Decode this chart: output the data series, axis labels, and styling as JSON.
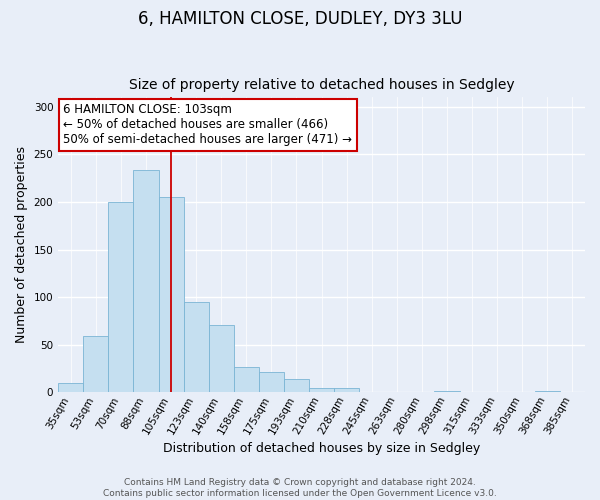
{
  "title": "6, HAMILTON CLOSE, DUDLEY, DY3 3LU",
  "subtitle": "Size of property relative to detached houses in Sedgley",
  "xlabel": "Distribution of detached houses by size in Sedgley",
  "ylabel": "Number of detached properties",
  "categories": [
    "35sqm",
    "53sqm",
    "70sqm",
    "88sqm",
    "105sqm",
    "123sqm",
    "140sqm",
    "158sqm",
    "175sqm",
    "193sqm",
    "210sqm",
    "228sqm",
    "245sqm",
    "263sqm",
    "280sqm",
    "298sqm",
    "315sqm",
    "333sqm",
    "350sqm",
    "368sqm",
    "385sqm"
  ],
  "values": [
    10,
    59,
    200,
    234,
    205,
    95,
    71,
    27,
    21,
    14,
    4,
    4,
    0,
    0,
    0,
    1,
    0,
    0,
    0,
    1,
    0
  ],
  "bar_color": "#c5dff0",
  "bar_edge_color": "#7ab4d4",
  "vline_x_index": 4,
  "vline_color": "#cc0000",
  "annotation_text": "6 HAMILTON CLOSE: 103sqm\n← 50% of detached houses are smaller (466)\n50% of semi-detached houses are larger (471) →",
  "annotation_box_color": "#ffffff",
  "annotation_box_edge_color": "#cc0000",
  "ylim": [
    0,
    310
  ],
  "yticks": [
    0,
    50,
    100,
    150,
    200,
    250,
    300
  ],
  "footer_line1": "Contains HM Land Registry data © Crown copyright and database right 2024.",
  "footer_line2": "Contains public sector information licensed under the Open Government Licence v3.0.",
  "background_color": "#e8eef8",
  "plot_background_color": "#e8eef8",
  "title_fontsize": 12,
  "subtitle_fontsize": 10,
  "axis_label_fontsize": 9,
  "tick_fontsize": 7.5,
  "annotation_fontsize": 8.5,
  "footer_fontsize": 6.5
}
